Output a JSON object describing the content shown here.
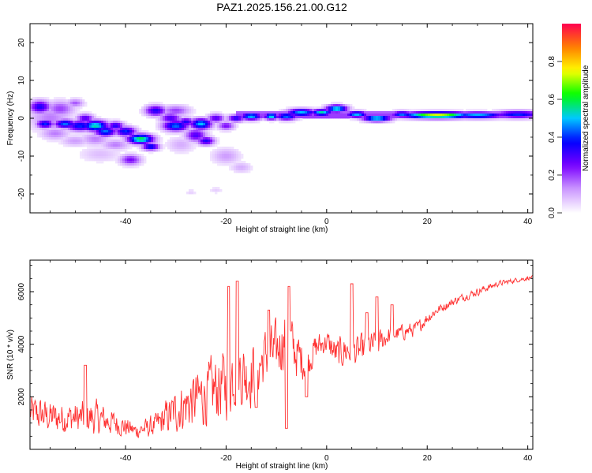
{
  "chart_data": [
    {
      "type": "heatmap",
      "title": "PAZ1.2025.156.21.00.G12",
      "xlabel": "Height of straight line (km)",
      "ylabel": "Frequency (Hz)",
      "xlim": [
        -59,
        41
      ],
      "ylim": [
        -25,
        25
      ],
      "xticks": [
        -40,
        -20,
        0,
        20,
        40
      ],
      "yticks": [
        -20,
        -10,
        0,
        10,
        20
      ],
      "grid": false,
      "colorbar": {
        "label": "Normalized spectral amplitude",
        "range": [
          0,
          1
        ],
        "ticks": [
          "0.0",
          "0.2",
          "0.4",
          "0.6",
          "0.8"
        ],
        "colormap": [
          "#ffffff",
          "#cc99ff",
          "#7a00ff",
          "#0000ff",
          "#00c8ff",
          "#00ff00",
          "#ffff00",
          "#ff8000",
          "#ff0050"
        ]
      },
      "blobs": [
        {
          "x": -57,
          "y": 3,
          "sx": 1.5,
          "sy": 1.2,
          "a": 0.35
        },
        {
          "x": -53,
          "y": 2.5,
          "sx": 2,
          "sy": 1.5,
          "a": 0.2
        },
        {
          "x": -55,
          "y": 0,
          "sx": 3,
          "sy": 2.5,
          "a": 0.15
        },
        {
          "x": -56,
          "y": -1.5,
          "sx": 1.2,
          "sy": 0.8,
          "a": 0.4
        },
        {
          "x": -52,
          "y": -1.5,
          "sx": 1.5,
          "sy": 0.8,
          "a": 0.45
        },
        {
          "x": -48,
          "y": 0,
          "sx": 1.2,
          "sy": 0.8,
          "a": 0.3
        },
        {
          "x": -49,
          "y": -2,
          "sx": 2,
          "sy": 1,
          "a": 0.4
        },
        {
          "x": -46,
          "y": -2,
          "sx": 1.8,
          "sy": 1,
          "a": 0.55
        },
        {
          "x": -42,
          "y": -2,
          "sx": 1.2,
          "sy": 0.8,
          "a": 0.35
        },
        {
          "x": -44,
          "y": -3.5,
          "sx": 1.5,
          "sy": 0.9,
          "a": 0.45
        },
        {
          "x": -40,
          "y": -3.5,
          "sx": 1.5,
          "sy": 0.9,
          "a": 0.4
        },
        {
          "x": -37,
          "y": -5.5,
          "sx": 1.8,
          "sy": 0.9,
          "a": 0.6
        },
        {
          "x": -35,
          "y": -7.5,
          "sx": 1.2,
          "sy": 0.7,
          "a": 0.4
        },
        {
          "x": -46,
          "y": -5.5,
          "sx": 2,
          "sy": 1.2,
          "a": 0.15
        },
        {
          "x": -42,
          "y": -7,
          "sx": 2,
          "sy": 1,
          "a": 0.15
        },
        {
          "x": -39,
          "y": -11,
          "sx": 1.5,
          "sy": 1,
          "a": 0.25
        },
        {
          "x": -45,
          "y": -9.5,
          "sx": 3,
          "sy": 1.5,
          "a": 0.08
        },
        {
          "x": -50,
          "y": -6,
          "sx": 2,
          "sy": 1,
          "a": 0.12
        },
        {
          "x": -54,
          "y": -4,
          "sx": 2,
          "sy": 1.2,
          "a": 0.15
        },
        {
          "x": -50,
          "y": 4,
          "sx": 1.2,
          "sy": 0.8,
          "a": 0.18
        },
        {
          "x": -34,
          "y": 2,
          "sx": 1.5,
          "sy": 1,
          "a": 0.35
        },
        {
          "x": -31,
          "y": 0,
          "sx": 1.5,
          "sy": 1,
          "a": 0.3
        },
        {
          "x": -30,
          "y": -2,
          "sx": 1.8,
          "sy": 1,
          "a": 0.45
        },
        {
          "x": -28,
          "y": -1,
          "sx": 1.2,
          "sy": 0.8,
          "a": 0.35
        },
        {
          "x": -25,
          "y": -1.5,
          "sx": 1.5,
          "sy": 1,
          "a": 0.5
        },
        {
          "x": -26,
          "y": -4.5,
          "sx": 1.5,
          "sy": 1.2,
          "a": 0.3
        },
        {
          "x": -24,
          "y": -6,
          "sx": 1.2,
          "sy": 0.8,
          "a": 0.35
        },
        {
          "x": -22,
          "y": 0,
          "sx": 1.2,
          "sy": 0.8,
          "a": 0.3
        },
        {
          "x": -20,
          "y": -2,
          "sx": 1.2,
          "sy": 0.8,
          "a": 0.25
        },
        {
          "x": -30,
          "y": 2,
          "sx": 2,
          "sy": 1,
          "a": 0.2
        },
        {
          "x": -20,
          "y": -10,
          "sx": 2,
          "sy": 1.5,
          "a": 0.12
        },
        {
          "x": -17,
          "y": -13,
          "sx": 1.5,
          "sy": 1,
          "a": 0.1
        },
        {
          "x": -29,
          "y": -7,
          "sx": 2,
          "sy": 1.5,
          "a": 0.1
        },
        {
          "x": -18,
          "y": 0,
          "sx": 1.2,
          "sy": 0.7,
          "a": 0.35
        },
        {
          "x": -15,
          "y": 0.5,
          "sx": 1.5,
          "sy": 0.7,
          "a": 0.5
        },
        {
          "x": -11,
          "y": 0.5,
          "sx": 1,
          "sy": 0.6,
          "a": 0.55
        },
        {
          "x": -8,
          "y": 0.5,
          "sx": 1.5,
          "sy": 0.7,
          "a": 0.45
        },
        {
          "x": -5,
          "y": 1.5,
          "sx": 2,
          "sy": 0.7,
          "a": 0.5
        },
        {
          "x": -1,
          "y": 1.5,
          "sx": 1.5,
          "sy": 0.6,
          "a": 0.55
        },
        {
          "x": 2,
          "y": 2.5,
          "sx": 1.5,
          "sy": 0.7,
          "a": 0.55
        },
        {
          "x": 6,
          "y": 1,
          "sx": 1.5,
          "sy": 0.6,
          "a": 0.5
        },
        {
          "x": 10,
          "y": 0,
          "sx": 2,
          "sy": 0.6,
          "a": 0.55
        },
        {
          "x": 15,
          "y": 1,
          "sx": 1.5,
          "sy": 0.6,
          "a": 0.45
        },
        {
          "x": 22,
          "y": 0.8,
          "sx": 5,
          "sy": 0.6,
          "a": 0.75
        },
        {
          "x": 30,
          "y": 0.8,
          "sx": 4,
          "sy": 0.6,
          "a": 0.5
        },
        {
          "x": 38,
          "y": 1,
          "sx": 3.5,
          "sy": 0.7,
          "a": 0.4
        },
        {
          "x": -22,
          "y": -19,
          "sx": 1,
          "sy": 0.6,
          "a": 0.06
        },
        {
          "x": -27,
          "y": -19.5,
          "sx": 0.8,
          "sy": 0.5,
          "a": 0.06
        }
      ],
      "band": {
        "x_from": -18,
        "x_to": 41,
        "y_from": 0,
        "y_to": 1.7,
        "a": 0.2
      }
    },
    {
      "type": "line",
      "xlabel": "Height of straight line (km)",
      "ylabel": "SNR (10 * v/v)",
      "xlim": [
        -59,
        41
      ],
      "ylim": [
        0,
        7200
      ],
      "xticks": [
        -40,
        -20,
        0,
        20,
        40
      ],
      "yticks": [
        2000,
        4000,
        6000
      ],
      "grid": false,
      "color": "#ff3030",
      "envelope_x": [
        -59,
        -54,
        -50,
        -46,
        -42,
        -38,
        -34,
        -32,
        -28,
        -24,
        -20,
        -18,
        -16,
        -14,
        -12,
        -10,
        -8,
        -6,
        -4,
        -2,
        0,
        2,
        4,
        6,
        8,
        10,
        12,
        14,
        16,
        18,
        20,
        22,
        26,
        30,
        34,
        38,
        41
      ],
      "envelope_y": [
        1400,
        1200,
        1200,
        1200,
        1000,
        700,
        900,
        1200,
        1700,
        2100,
        2500,
        3100,
        2800,
        3000,
        3600,
        3700,
        4400,
        3600,
        3300,
        3900,
        4100,
        3600,
        3800,
        3700,
        3900,
        4000,
        4300,
        4400,
        4500,
        4600,
        5000,
        5300,
        5700,
        6000,
        6300,
        6450,
        6550
      ],
      "envelope_amp": [
        900,
        800,
        800,
        900,
        600,
        400,
        600,
        900,
        1300,
        1600,
        1800,
        1900,
        1700,
        1600,
        1400,
        1500,
        1500,
        1200,
        900,
        700,
        600,
        800,
        900,
        800,
        700,
        700,
        500,
        400,
        400,
        350,
        300,
        250,
        200,
        200,
        150,
        120,
        100
      ],
      "spikes": [
        {
          "x": -48,
          "y": 3200
        },
        {
          "x": -19.5,
          "y": 6200
        },
        {
          "x": -17.8,
          "y": 6400
        },
        {
          "x": -11.5,
          "y": 5300
        },
        {
          "x": -7.5,
          "y": 6200
        },
        {
          "x": -8,
          "y": 800
        },
        {
          "x": 5,
          "y": 6300
        },
        {
          "x": 8,
          "y": 5200
        },
        {
          "x": 10,
          "y": 5800
        },
        {
          "x": 13,
          "y": 5500
        },
        {
          "x": -14,
          "y": 1600
        },
        {
          "x": -4,
          "y": 2000
        }
      ]
    }
  ]
}
